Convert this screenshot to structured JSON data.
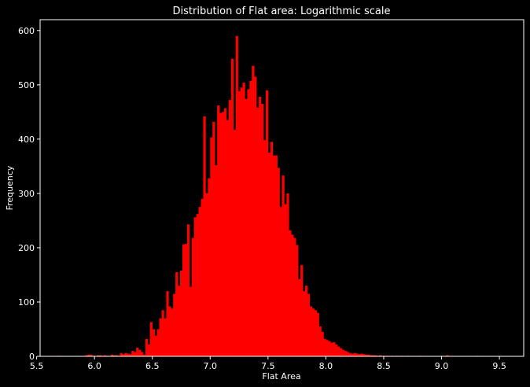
{
  "chart_data": {
    "type": "bar",
    "title": "Distribution of Flat area: Logarithmic scale",
    "xlabel": "Flat Area",
    "ylabel": "Frequency",
    "xlim": [
      5.53,
      9.71
    ],
    "ylim": [
      0,
      620
    ],
    "xticks": [
      "5.5",
      "6.0",
      "6.5",
      "7.0",
      "7.5",
      "8.0",
      "8.5",
      "9.0",
      "9.5"
    ],
    "yticks": [
      "0",
      "100",
      "200",
      "300",
      "400",
      "500",
      "600"
    ],
    "bin_width": 0.02,
    "grid": false,
    "legend": "none",
    "colors": {
      "background": "#000000",
      "bars": "#ff0000",
      "axes": "#ffffff",
      "text": "#ffffff"
    },
    "bins": [
      {
        "x": 5.68,
        "y": 1
      },
      {
        "x": 5.92,
        "y": 2
      },
      {
        "x": 5.94,
        "y": 3
      },
      {
        "x": 5.96,
        "y": 3
      },
      {
        "x": 5.98,
        "y": 1
      },
      {
        "x": 6.02,
        "y": 2
      },
      {
        "x": 6.04,
        "y": 2
      },
      {
        "x": 6.06,
        "y": 1
      },
      {
        "x": 6.08,
        "y": 2
      },
      {
        "x": 6.1,
        "y": 1
      },
      {
        "x": 6.14,
        "y": 3
      },
      {
        "x": 6.16,
        "y": 2
      },
      {
        "x": 6.18,
        "y": 2
      },
      {
        "x": 6.2,
        "y": 1
      },
      {
        "x": 6.22,
        "y": 6
      },
      {
        "x": 6.24,
        "y": 4
      },
      {
        "x": 6.26,
        "y": 6
      },
      {
        "x": 6.28,
        "y": 5
      },
      {
        "x": 6.3,
        "y": 4
      },
      {
        "x": 6.32,
        "y": 10
      },
      {
        "x": 6.34,
        "y": 8
      },
      {
        "x": 6.36,
        "y": 16
      },
      {
        "x": 6.38,
        "y": 12
      },
      {
        "x": 6.4,
        "y": 8
      },
      {
        "x": 6.42,
        "y": 3
      },
      {
        "x": 6.44,
        "y": 32
      },
      {
        "x": 6.46,
        "y": 22
      },
      {
        "x": 6.48,
        "y": 63
      },
      {
        "x": 6.5,
        "y": 50
      },
      {
        "x": 6.52,
        "y": 38
      },
      {
        "x": 6.54,
        "y": 50
      },
      {
        "x": 6.56,
        "y": 70
      },
      {
        "x": 6.58,
        "y": 85
      },
      {
        "x": 6.6,
        "y": 70
      },
      {
        "x": 6.62,
        "y": 120
      },
      {
        "x": 6.64,
        "y": 92
      },
      {
        "x": 6.66,
        "y": 88
      },
      {
        "x": 6.68,
        "y": 115
      },
      {
        "x": 6.7,
        "y": 155
      },
      {
        "x": 6.72,
        "y": 130
      },
      {
        "x": 6.74,
        "y": 158
      },
      {
        "x": 6.76,
        "y": 206
      },
      {
        "x": 6.78,
        "y": 207
      },
      {
        "x": 6.8,
        "y": 243
      },
      {
        "x": 6.82,
        "y": 128
      },
      {
        "x": 6.84,
        "y": 218
      },
      {
        "x": 6.86,
        "y": 256
      },
      {
        "x": 6.88,
        "y": 262
      },
      {
        "x": 6.9,
        "y": 275
      },
      {
        "x": 6.92,
        "y": 290
      },
      {
        "x": 6.94,
        "y": 442
      },
      {
        "x": 6.96,
        "y": 300
      },
      {
        "x": 6.98,
        "y": 328
      },
      {
        "x": 7.0,
        "y": 403
      },
      {
        "x": 7.02,
        "y": 432
      },
      {
        "x": 7.04,
        "y": 352
      },
      {
        "x": 7.06,
        "y": 462
      },
      {
        "x": 7.08,
        "y": 448
      },
      {
        "x": 7.1,
        "y": 450
      },
      {
        "x": 7.12,
        "y": 457
      },
      {
        "x": 7.14,
        "y": 435
      },
      {
        "x": 7.16,
        "y": 472
      },
      {
        "x": 7.18,
        "y": 548
      },
      {
        "x": 7.2,
        "y": 417
      },
      {
        "x": 7.22,
        "y": 590
      },
      {
        "x": 7.24,
        "y": 488
      },
      {
        "x": 7.26,
        "y": 495
      },
      {
        "x": 7.28,
        "y": 504
      },
      {
        "x": 7.3,
        "y": 474
      },
      {
        "x": 7.32,
        "y": 492
      },
      {
        "x": 7.34,
        "y": 507
      },
      {
        "x": 7.36,
        "y": 535
      },
      {
        "x": 7.38,
        "y": 515
      },
      {
        "x": 7.4,
        "y": 458
      },
      {
        "x": 7.42,
        "y": 478
      },
      {
        "x": 7.44,
        "y": 465
      },
      {
        "x": 7.46,
        "y": 398
      },
      {
        "x": 7.48,
        "y": 490
      },
      {
        "x": 7.5,
        "y": 375
      },
      {
        "x": 7.52,
        "y": 395
      },
      {
        "x": 7.54,
        "y": 370
      },
      {
        "x": 7.56,
        "y": 370
      },
      {
        "x": 7.58,
        "y": 347
      },
      {
        "x": 7.6,
        "y": 275
      },
      {
        "x": 7.62,
        "y": 333
      },
      {
        "x": 7.64,
        "y": 280
      },
      {
        "x": 7.66,
        "y": 300
      },
      {
        "x": 7.68,
        "y": 232
      },
      {
        "x": 7.7,
        "y": 224
      },
      {
        "x": 7.72,
        "y": 218
      },
      {
        "x": 7.74,
        "y": 205
      },
      {
        "x": 7.76,
        "y": 142
      },
      {
        "x": 7.78,
        "y": 168
      },
      {
        "x": 7.8,
        "y": 120
      },
      {
        "x": 7.82,
        "y": 130
      },
      {
        "x": 7.84,
        "y": 115
      },
      {
        "x": 7.86,
        "y": 92
      },
      {
        "x": 7.88,
        "y": 88
      },
      {
        "x": 7.9,
        "y": 85
      },
      {
        "x": 7.92,
        "y": 80
      },
      {
        "x": 7.94,
        "y": 55
      },
      {
        "x": 7.96,
        "y": 45
      },
      {
        "x": 7.98,
        "y": 32
      },
      {
        "x": 8.0,
        "y": 30
      },
      {
        "x": 8.02,
        "y": 28
      },
      {
        "x": 8.04,
        "y": 25
      },
      {
        "x": 8.06,
        "y": 26
      },
      {
        "x": 8.08,
        "y": 22
      },
      {
        "x": 8.1,
        "y": 18
      },
      {
        "x": 8.12,
        "y": 15
      },
      {
        "x": 8.14,
        "y": 12
      },
      {
        "x": 8.16,
        "y": 10
      },
      {
        "x": 8.18,
        "y": 8
      },
      {
        "x": 8.2,
        "y": 6
      },
      {
        "x": 8.22,
        "y": 5
      },
      {
        "x": 8.24,
        "y": 6
      },
      {
        "x": 8.26,
        "y": 5
      },
      {
        "x": 8.28,
        "y": 4
      },
      {
        "x": 8.3,
        "y": 5
      },
      {
        "x": 8.32,
        "y": 4
      },
      {
        "x": 8.34,
        "y": 3
      },
      {
        "x": 8.36,
        "y": 3
      },
      {
        "x": 8.38,
        "y": 2
      },
      {
        "x": 8.4,
        "y": 2
      },
      {
        "x": 8.42,
        "y": 2
      },
      {
        "x": 8.44,
        "y": 1
      },
      {
        "x": 8.46,
        "y": 2
      },
      {
        "x": 8.48,
        "y": 1
      },
      {
        "x": 8.5,
        "y": 1
      },
      {
        "x": 8.52,
        "y": 1
      },
      {
        "x": 8.56,
        "y": 1
      },
      {
        "x": 8.6,
        "y": 1
      },
      {
        "x": 8.64,
        "y": 1
      },
      {
        "x": 8.7,
        "y": 1
      },
      {
        "x": 8.8,
        "y": 1
      },
      {
        "x": 9.04,
        "y": 2
      },
      {
        "x": 9.3,
        "y": 1
      }
    ]
  }
}
